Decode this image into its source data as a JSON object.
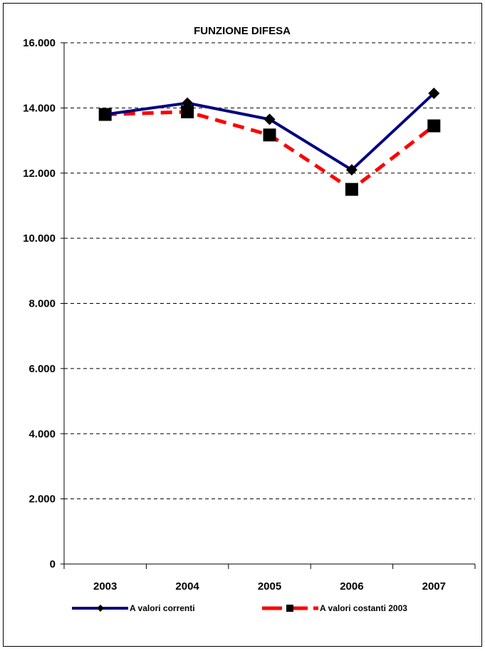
{
  "chart_data": {
    "type": "line",
    "title": "FUNZIONE DIFESA",
    "xlabel": "",
    "ylabel": "",
    "categories": [
      "2003",
      "2004",
      "2005",
      "2006",
      "2007"
    ],
    "ylim": [
      0,
      16000
    ],
    "yticks": [
      0,
      2000,
      4000,
      6000,
      8000,
      10000,
      12000,
      14000,
      16000
    ],
    "ytick_labels": [
      "0",
      "2.000",
      "4.000",
      "6.000",
      "8.000",
      "10.000",
      "12.000",
      "14.000",
      "16.000"
    ],
    "grid": true,
    "legend_position": "bottom",
    "series": [
      {
        "name": "A valori correnti",
        "values": [
          13800,
          14150,
          13650,
          12100,
          14450
        ],
        "color": "#000080",
        "line_style": "solid",
        "marker": "diamond"
      },
      {
        "name": "A valori costanti 2003",
        "values": [
          13800,
          13880,
          13170,
          11500,
          13450
        ],
        "color": "#ff0000",
        "line_style": "dashed",
        "marker": "square"
      }
    ]
  }
}
